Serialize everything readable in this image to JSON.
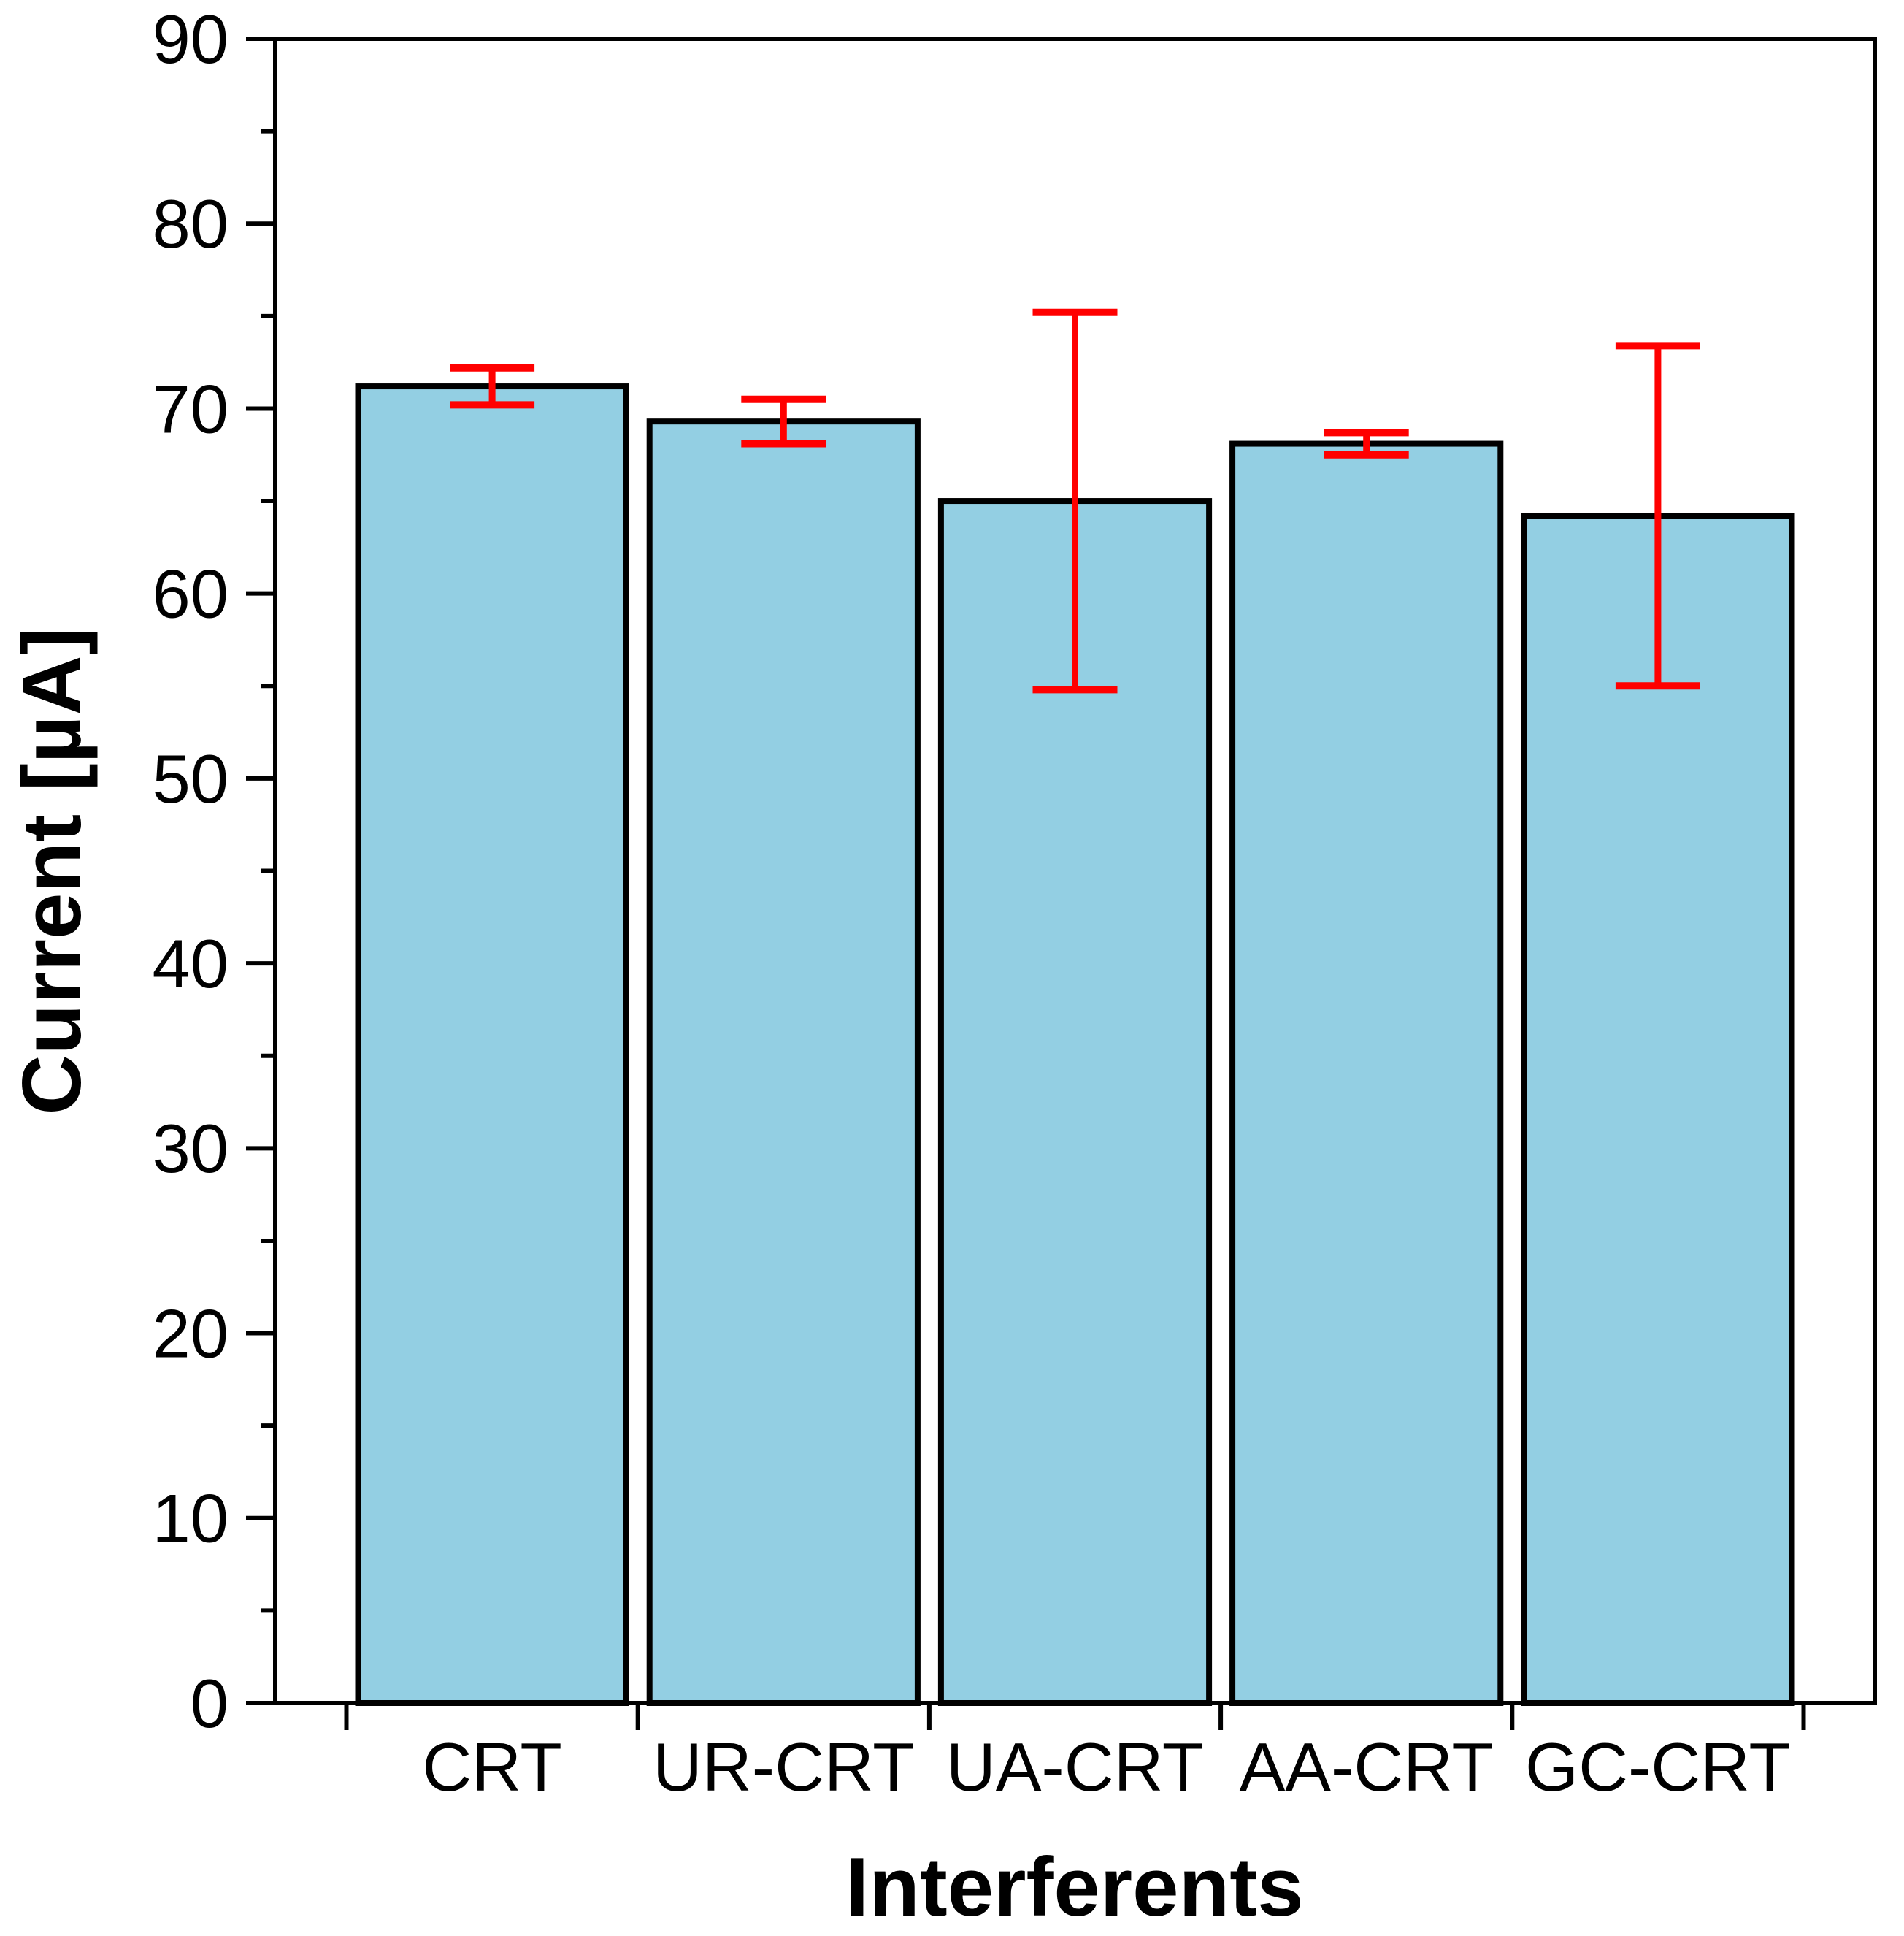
{
  "chart_data": {
    "type": "bar",
    "title": "",
    "xlabel": "Interferents",
    "ylabel": "Current [µA]",
    "categories": [
      "CRT",
      "UR-CRT",
      "UA-CRT",
      "AA-CRT",
      "GC-CRT"
    ],
    "values": [
      71.2,
      69.3,
      65.0,
      68.1,
      64.2
    ],
    "errors": [
      1.0,
      1.2,
      10.2,
      0.6,
      9.2
    ],
    "ylim": [
      0,
      90
    ],
    "ytick_step": 10,
    "yminor_step": 5,
    "ytick_labels": [
      "0",
      "10",
      "20",
      "30",
      "40",
      "50",
      "60",
      "70",
      "80",
      "90"
    ],
    "grid": false,
    "legend": null,
    "bar_color": "#93CFE3",
    "bar_edge_color": "#000000",
    "error_color": "#FF0000",
    "axis_color": "#000000"
  }
}
